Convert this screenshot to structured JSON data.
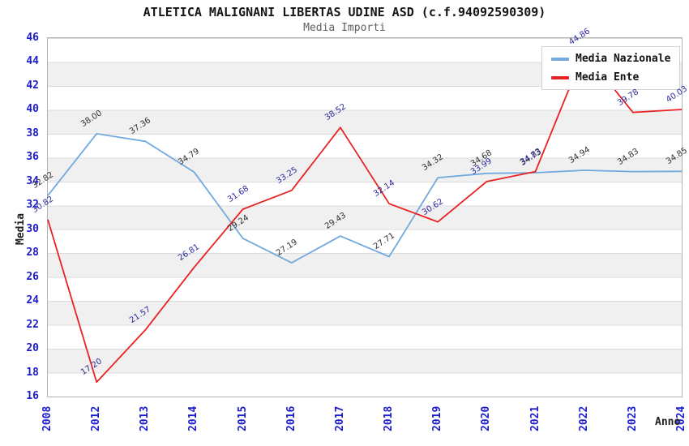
{
  "chart_data": {
    "type": "line",
    "title": "ATLETICA MALIGNANI LIBERTAS UDINE ASD (c.f.94092590309)",
    "subtitle": "Media Importi",
    "xlabel": "Anno",
    "ylabel": "Media",
    "categories": [
      "2008",
      "2012",
      "2013",
      "2014",
      "2015",
      "2016",
      "2017",
      "2018",
      "2019",
      "2020",
      "2021",
      "2022",
      "2023",
      "2024"
    ],
    "series": [
      {
        "name": "Media Nazionale",
        "line_color": "#72a9de",
        "value_label_color": "#303030",
        "values": [
          32.82,
          38.0,
          37.36,
          34.79,
          29.24,
          27.19,
          29.43,
          27.71,
          34.32,
          34.68,
          34.73,
          34.94,
          34.83,
          34.85
        ]
      },
      {
        "name": "Media Ente",
        "line_color": "#e82222",
        "value_label_color": "#2b2b9d",
        "values": [
          30.82,
          17.2,
          21.57,
          26.81,
          31.68,
          33.25,
          38.52,
          32.14,
          30.62,
          33.99,
          34.83,
          44.86,
          39.78,
          40.03
        ]
      }
    ],
    "ylim": [
      16,
      46
    ],
    "ytick_step": 2,
    "value_label_decimals": 2,
    "legend_position": "top-right",
    "grid": "horizontal-bands",
    "axis_tick_color": "#1c1ccc",
    "band_color": "#f0f0f0",
    "gridline_color": "#dcdcdc",
    "plot_border_color": "#b2b2b2"
  }
}
